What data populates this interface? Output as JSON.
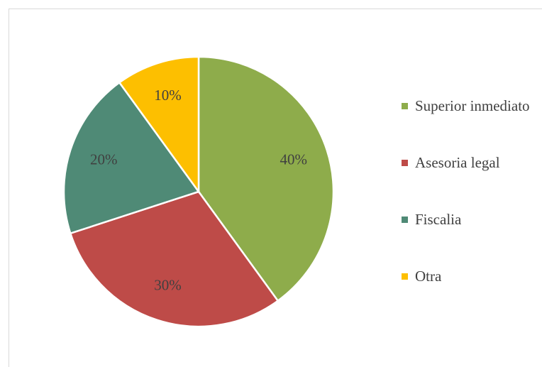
{
  "chart_data": {
    "type": "pie",
    "categories": [
      "Superior inmediato",
      "Asesoria legal",
      "Fiscalia",
      "Otra"
    ],
    "values": [
      40,
      30,
      20,
      10
    ],
    "value_labels": [
      "40%",
      "30%",
      "20%",
      "10%"
    ],
    "colors": [
      "#8eac4b",
      "#be4b48",
      "#4f8a76",
      "#fdbf00"
    ],
    "legend": "right"
  }
}
